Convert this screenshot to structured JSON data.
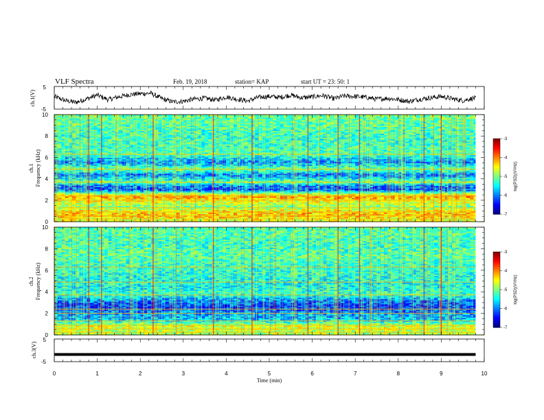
{
  "header": {
    "title": "VLF Spectra",
    "date": "Feb. 19, 2018",
    "station": "station= KAP",
    "start": "start  UT =   23: 50: 1"
  },
  "chart_data": [
    {
      "type": "line",
      "name": "ch1_waveform",
      "ylabel": "ch.1(V)",
      "ylim": [
        -5,
        5
      ],
      "yticks": [
        "5",
        "-5"
      ],
      "xlim": [
        0,
        10
      ],
      "x": [
        0.0,
        0.25,
        0.5,
        0.75,
        1.0,
        1.25,
        1.5,
        1.75,
        2.0,
        2.25,
        2.5,
        2.75,
        3.0,
        3.25,
        3.5,
        3.75,
        4.0,
        4.25,
        4.5,
        4.75,
        5.0,
        5.25,
        5.5,
        5.75,
        6.0,
        6.25,
        6.5,
        6.75,
        7.0,
        7.25,
        7.5,
        7.75,
        8.0,
        8.25,
        8.5,
        8.75,
        9.0,
        9.25,
        9.5,
        9.75,
        9.8
      ],
      "y": [
        0.6,
        -1.2,
        -2.0,
        -0.5,
        1.2,
        -0.8,
        0.4,
        1.4,
        1.8,
        2.0,
        -0.4,
        -1.8,
        -1.5,
        -0.6,
        -0.2,
        -1.0,
        0.4,
        -0.6,
        -1.4,
        0.2,
        0.6,
        0.2,
        1.2,
        0.0,
        0.4,
        1.0,
        -0.4,
        0.8,
        0.6,
        0.2,
        -0.6,
        -0.2,
        -0.8,
        -1.6,
        -0.6,
        0.0,
        0.6,
        -0.4,
        -1.2,
        -0.2,
        -0.3
      ]
    },
    {
      "type": "heatmap",
      "name": "ch1_spectrogram",
      "ylabel": "ch.1\nFrequency (kHz)",
      "ylim": [
        0,
        10
      ],
      "yticks": [
        "0",
        "2",
        "4",
        "6",
        "8",
        "10"
      ],
      "xlim": [
        0,
        10
      ],
      "colorbar": {
        "label": "log(PSD)(V²/Hz)",
        "min": -7,
        "max": -3,
        "ticks": [
          "-3",
          "-4",
          "-5",
          "-6",
          "-7"
        ]
      },
      "bands_kHz": [
        [
          0.2,
          -4.6
        ],
        [
          0.6,
          -4.2
        ],
        [
          1.0,
          -4.4
        ],
        [
          1.4,
          -5.0
        ],
        [
          2.0,
          -4.5
        ],
        [
          2.4,
          -4.0
        ],
        [
          3.0,
          -6.2
        ],
        [
          3.4,
          -6.0
        ],
        [
          3.7,
          -5.0
        ],
        [
          4.4,
          -6.1
        ],
        [
          4.9,
          -5.0
        ],
        [
          5.6,
          -6.0
        ],
        [
          6.3,
          -5.2
        ],
        [
          7.0,
          -5.3
        ],
        [
          8.0,
          -5.3
        ],
        [
          9.0,
          -5.2
        ],
        [
          9.8,
          -5.1
        ]
      ],
      "impulse_times_min": [
        0.8,
        1.1,
        2.3,
        3.7,
        4.6,
        5.9,
        6.6,
        7.1,
        8.6,
        9.0
      ]
    },
    {
      "type": "heatmap",
      "name": "ch2_spectrogram",
      "ylabel": "ch.2\nFrequency (kHz)",
      "ylim": [
        0,
        10
      ],
      "yticks": [
        "0",
        "2",
        "4",
        "6",
        "8",
        "10"
      ],
      "xlim": [
        0,
        10
      ],
      "colorbar": {
        "label": "log(PSD)(V²/Hz)",
        "min": -7,
        "max": -3,
        "ticks": [
          "-3",
          "-4",
          "-5",
          "-6",
          "-7"
        ]
      },
      "bands_kHz": [
        [
          0.3,
          -4.8
        ],
        [
          0.8,
          -4.6
        ],
        [
          1.5,
          -5.8
        ],
        [
          2.0,
          -5.9
        ],
        [
          2.6,
          -6.3
        ],
        [
          3.2,
          -6.0
        ],
        [
          3.8,
          -5.3
        ],
        [
          4.5,
          -5.5
        ],
        [
          5.5,
          -5.4
        ],
        [
          6.6,
          -5.3
        ],
        [
          7.5,
          -5.2
        ],
        [
          8.5,
          -5.3
        ],
        [
          9.6,
          -5.2
        ]
      ],
      "impulse_times_min": [
        0.8,
        1.1,
        2.3,
        3.7,
        4.6,
        5.9,
        6.6,
        7.1,
        8.6,
        9.0
      ]
    },
    {
      "type": "line",
      "name": "ch3_waveform",
      "ylabel": "ch.3(V)",
      "ylim": [
        -5,
        5
      ],
      "yticks": [
        "5",
        "-5"
      ],
      "xlim": [
        0,
        10
      ],
      "x": [
        0,
        9.8
      ],
      "y": [
        -1.8,
        -1.8
      ]
    }
  ],
  "xaxis": {
    "label": "Time  (min)",
    "ticks": [
      "0",
      "1",
      "2",
      "3",
      "4",
      "5",
      "6",
      "7",
      "8",
      "9",
      "10"
    ]
  },
  "colors": {
    "ink": "#000000",
    "noise_floor": "#1a4fd8",
    "background_emission": "#3fdc5a"
  }
}
